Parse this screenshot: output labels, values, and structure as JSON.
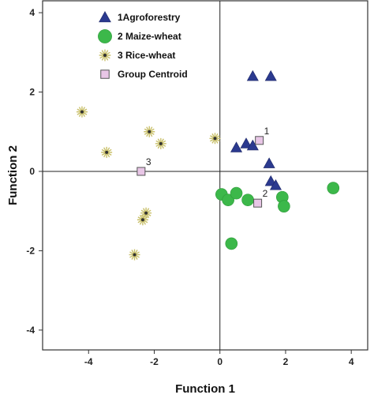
{
  "chart_data": {
    "type": "scatter",
    "xlabel": "Function 1",
    "ylabel": "Function 2",
    "xlim": [
      -5.4,
      4.5
    ],
    "ylim": [
      -4.5,
      4.3
    ],
    "x_ticks": [
      -4,
      -2,
      0,
      2,
      4
    ],
    "y_ticks": [
      -4,
      -2,
      0,
      2,
      4
    ],
    "grid": false,
    "reference_lines": {
      "x": 0,
      "y": 0
    },
    "legend_position": "top-left",
    "series": [
      {
        "name": "1Agroforestry",
        "marker": "triangle",
        "color": "#2b3a8f",
        "points": [
          {
            "x": 1.0,
            "y": 2.4
          },
          {
            "x": 1.55,
            "y": 2.4
          },
          {
            "x": 0.8,
            "y": 0.7
          },
          {
            "x": 0.5,
            "y": 0.6
          },
          {
            "x": 1.0,
            "y": 0.65
          },
          {
            "x": 1.5,
            "y": 0.2
          },
          {
            "x": 1.55,
            "y": -0.25
          },
          {
            "x": 1.7,
            "y": -0.35
          }
        ]
      },
      {
        "name": "2 Maize-wheat",
        "marker": "circle",
        "color": "#3cb84a",
        "points": [
          {
            "x": 0.05,
            "y": -0.58
          },
          {
            "x": 0.25,
            "y": -0.72
          },
          {
            "x": 0.5,
            "y": -0.55
          },
          {
            "x": 0.85,
            "y": -0.72
          },
          {
            "x": 1.9,
            "y": -0.65
          },
          {
            "x": 1.95,
            "y": -0.88
          },
          {
            "x": 3.45,
            "y": -0.42
          },
          {
            "x": 0.35,
            "y": -1.82
          }
        ]
      },
      {
        "name": "3 Rice-wheat",
        "marker": "star",
        "color": "#c9c06a",
        "points": [
          {
            "x": -4.2,
            "y": 1.5
          },
          {
            "x": -3.45,
            "y": 0.48
          },
          {
            "x": -2.15,
            "y": 1.0
          },
          {
            "x": -1.8,
            "y": 0.7
          },
          {
            "x": -0.15,
            "y": 0.83
          },
          {
            "x": -2.25,
            "y": -1.05
          },
          {
            "x": -2.35,
            "y": -1.22
          },
          {
            "x": -2.6,
            "y": -2.1
          }
        ]
      },
      {
        "name": "Group Centroid",
        "marker": "square",
        "color": "#e8c6e6",
        "points": [
          {
            "x": 1.2,
            "y": 0.78,
            "label": "1"
          },
          {
            "x": 1.15,
            "y": -0.8,
            "label": "2"
          },
          {
            "x": -2.4,
            "y": 0.0,
            "label": "3"
          }
        ]
      }
    ]
  }
}
